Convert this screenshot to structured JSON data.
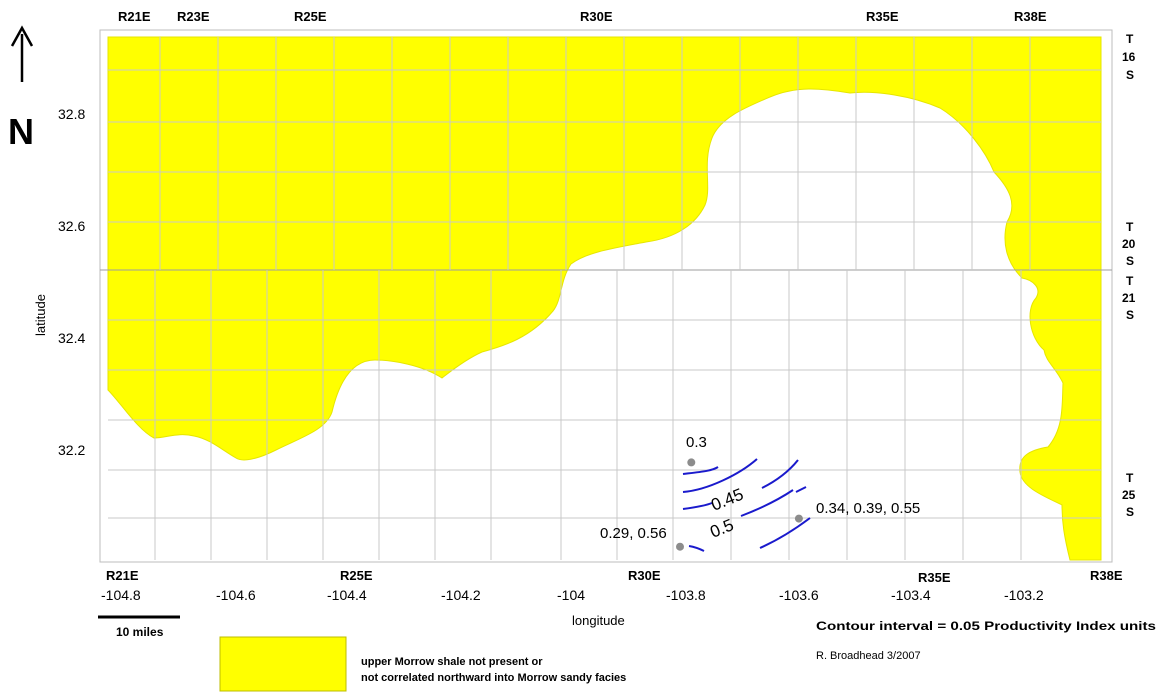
{
  "north_arrow": {
    "letter": "N"
  },
  "ranges_top": [
    "R21E",
    "R23E",
    "R25E",
    "R30E",
    "R35E",
    "R38E"
  ],
  "ranges_bottom": [
    "R21E",
    "R25E",
    "R30E",
    "R35E",
    "R38E"
  ],
  "townships": [
    {
      "t": "T",
      "n": "16",
      "s": "S"
    },
    {
      "t": "T",
      "n": "20",
      "s": "S"
    },
    {
      "t": "T",
      "n": "21",
      "s": "S"
    },
    {
      "t": "T",
      "n": "25",
      "s": "S"
    }
  ],
  "axes": {
    "xlabel": "longitude",
    "ylabel": "latitude",
    "xlim": [
      -104.88,
      -103.06
    ],
    "ylim": [
      32.02,
      32.94
    ],
    "xticks": [
      "-104.8",
      "-104.6",
      "-104.4",
      "-104.2",
      "-104",
      "-103.8",
      "-103.6",
      "-103.4",
      "-103.2"
    ],
    "yticks": [
      "32.8",
      "32.6",
      "32.4",
      "32.2"
    ]
  },
  "wells": [
    {
      "label": "0.3",
      "lon": -103.78,
      "lat": 32.18
    },
    {
      "label": "0.34, 0.39, 0.55",
      "lon": -103.59,
      "lat": 32.08
    },
    {
      "label": "0.29, 0.56",
      "lon": -103.8,
      "lat": 32.03
    }
  ],
  "contour_labels": [
    "0.45",
    "0.5"
  ],
  "colors": {
    "shale_absent": "#ffff00",
    "contour": "#1a1acc",
    "well": "#8c8c8c",
    "grid": "#c8c8c8"
  },
  "scale_bar": {
    "label": "10 miles"
  },
  "contour_interval": "Contour interval = 0.05 Productivity Index units",
  "credit": "R. Broadhead 3/2007",
  "legend": {
    "line1": "upper Morrow shale not present or",
    "line2": "not correlated northward into Morrow sandy facies"
  }
}
